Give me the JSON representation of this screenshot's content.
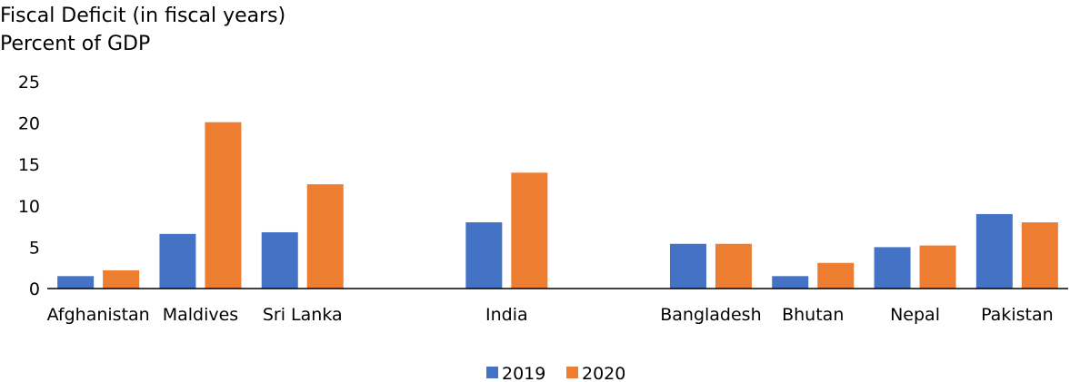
{
  "chart_data": {
    "type": "bar",
    "title": "Fiscal Deficit (in fiscal years)",
    "subtitle": "Percent of GDP",
    "categories": [
      "Afghanistan",
      "Maldives",
      "Sri Lanka",
      "",
      "India",
      "",
      "Bangladesh",
      "Bhutan",
      "Nepal",
      "Pakistan"
    ],
    "series": [
      {
        "name": "2019",
        "color": "#4472C4",
        "values": [
          1.5,
          6.6,
          6.8,
          null,
          8.0,
          null,
          5.4,
          1.5,
          5.0,
          9.0
        ]
      },
      {
        "name": "2020",
        "color": "#ED7D31",
        "values": [
          2.2,
          20.1,
          12.6,
          null,
          14.0,
          null,
          5.4,
          3.1,
          5.2,
          8.0
        ]
      }
    ],
    "ylim": [
      0,
      25
    ],
    "yticks": [
      0,
      5,
      10,
      15,
      20,
      25
    ],
    "grid": false,
    "legend_position": "bottom-center"
  }
}
